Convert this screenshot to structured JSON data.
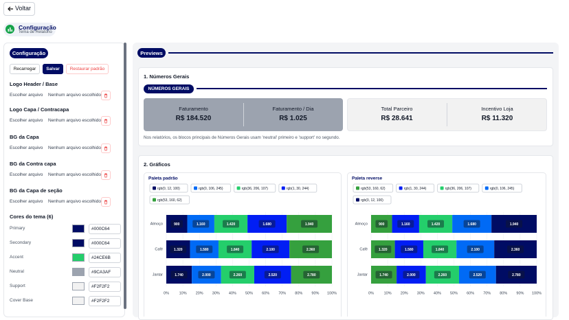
{
  "header": {
    "back": "Voltar",
    "title": "Configuração",
    "subtitle": "Tema de Relatório"
  },
  "sidebar": {
    "title": "Configuração",
    "buttons": [
      "Recarregar",
      "Salvar",
      "Restaurar padrão"
    ],
    "uploads": [
      {
        "label": "Logo Header / Base",
        "file": "Escolher arquivo",
        "status": "Nenhum arquivo escolhido"
      },
      {
        "label": "Logo Capa / Contracapa",
        "file": "Escolher arquivo",
        "status": "Nenhum arquivo escolhido"
      },
      {
        "label": "BG da Capa",
        "file": "Escolher arquivo",
        "status": "Nenhum arquivo escolhido"
      },
      {
        "label": "BG da Contra capa",
        "file": "Escolher arquivo",
        "status": "Nenhum arquivo escolhido"
      },
      {
        "label": "BG da Capa de seção",
        "file": "Escolher arquivo",
        "status": "Nenhum arquivo escolhido"
      }
    ],
    "colors_title": "Cores do tema (6)",
    "colors": [
      {
        "label": "Primary",
        "value": "#000C64"
      },
      {
        "label": "Secondary",
        "value": "#000C64"
      },
      {
        "label": "Accent",
        "value": "#24CE6B"
      },
      {
        "label": "Neutral",
        "value": "#9CA3AF"
      },
      {
        "label": "Support",
        "value": "#F2F2F2"
      },
      {
        "label": "Cover Base",
        "value": "#F2F2F2"
      }
    ]
  },
  "preview": {
    "title": "Previews",
    "general": {
      "title": "1. Números Gerais",
      "badge": "NÚMEROS GERAIS",
      "stats": [
        {
          "label": "Faturamento",
          "value": "R$ 184.520"
        },
        {
          "label": "Faturamento / Dia",
          "value": "R$ 1.025"
        },
        {
          "label": "Total Parceiro",
          "value": "R$ 28.641"
        },
        {
          "label": "Incentivo Loja",
          "value": "R$ 11.320"
        }
      ],
      "note": "Nos relatórios, os blocos principais de Números Gerais usam 'neutral' primeiro e 'support' no segundo."
    },
    "charts_title": "2. Gráficos"
  },
  "chart_data": [
    {
      "type": "bar",
      "orientation": "horizontal",
      "stacked": "percent",
      "title": "Paleta padrão",
      "categories": [
        "Almoço",
        "Café",
        "Jantar"
      ],
      "series": [
        {
          "name": "rgb(0, 12, 100)",
          "color": "#000C64",
          "values": [
            900,
            1320,
            1740
          ],
          "value_labels": [
            "900",
            "1.320",
            "1.740"
          ]
        },
        {
          "name": "rgb(0, 106, 245)",
          "color": "#006AF5",
          "values": [
            1160,
            1580,
            2000
          ],
          "value_labels": [
            "1.160",
            "1.580",
            "2.000"
          ]
        },
        {
          "name": "rgb(36, 206, 107)",
          "color": "#24CE6B",
          "values": [
            1420,
            1840,
            2260
          ],
          "value_labels": [
            "1.420",
            "1.840",
            "2.260"
          ]
        },
        {
          "name": "rgb(1, 30, 244)",
          "color": "#011EF4",
          "values": [
            1680,
            2100,
            2520
          ],
          "value_labels": [
            "1.680",
            "2.100",
            "2.520"
          ]
        },
        {
          "name": "rgb(53, 160, 62)",
          "color": "#35A03E",
          "values": [
            1940,
            2360,
            2780
          ],
          "value_labels": [
            "1.940",
            "2.360",
            "2.780"
          ]
        }
      ],
      "xlim": [
        0,
        100
      ],
      "xticks": [
        {
          "value": 0,
          "label": "0%"
        },
        {
          "value": 10,
          "label": "10%"
        },
        {
          "value": 20,
          "label": "20%"
        },
        {
          "value": 30,
          "label": "30%"
        },
        {
          "value": 40,
          "label": "40%"
        },
        {
          "value": 50,
          "label": "50%"
        },
        {
          "value": 60,
          "label": "60%"
        },
        {
          "value": 70,
          "label": "70%"
        },
        {
          "value": 80,
          "label": "80%"
        },
        {
          "value": 90,
          "label": "90%"
        },
        {
          "value": 100,
          "label": "100%"
        }
      ],
      "grid": true
    },
    {
      "type": "bar",
      "orientation": "horizontal",
      "stacked": "percent",
      "title": "Paleta reverse",
      "categories": [
        "Almoço",
        "Café",
        "Jantar"
      ],
      "series": [
        {
          "name": "rgb(53, 160, 62)",
          "color": "#35A03E",
          "values": [
            900,
            1320,
            1740
          ],
          "value_labels": [
            "900",
            "1.320",
            "1.740"
          ]
        },
        {
          "name": "rgb(1, 30, 244)",
          "color": "#011EF4",
          "values": [
            1160,
            1580,
            2000
          ],
          "value_labels": [
            "1.160",
            "1.580",
            "2.000"
          ]
        },
        {
          "name": "rgb(36, 206, 107)",
          "color": "#24CE6B",
          "values": [
            1420,
            1840,
            2260
          ],
          "value_labels": [
            "1.420",
            "1.840",
            "2.260"
          ]
        },
        {
          "name": "rgb(0, 106, 245)",
          "color": "#006AF5",
          "values": [
            1680,
            2100,
            2520
          ],
          "value_labels": [
            "1.680",
            "2.100",
            "2.520"
          ]
        },
        {
          "name": "rgb(0, 12, 100)",
          "color": "#000C64",
          "values": [
            1940,
            2360,
            2780
          ],
          "value_labels": [
            "1.940",
            "2.360",
            "2.780"
          ]
        }
      ],
      "xlim": [
        0,
        100
      ],
      "xticks": [
        {
          "value": 0,
          "label": "0%"
        },
        {
          "value": 10,
          "label": "10%"
        },
        {
          "value": 20,
          "label": "20%"
        },
        {
          "value": 30,
          "label": "30%"
        },
        {
          "value": 40,
          "label": "40%"
        },
        {
          "value": 50,
          "label": "50%"
        },
        {
          "value": 60,
          "label": "60%"
        },
        {
          "value": 70,
          "label": "70%"
        },
        {
          "value": 80,
          "label": "80%"
        },
        {
          "value": 90,
          "label": "90%"
        },
        {
          "value": 100,
          "label": "100%"
        }
      ],
      "grid": true
    }
  ]
}
